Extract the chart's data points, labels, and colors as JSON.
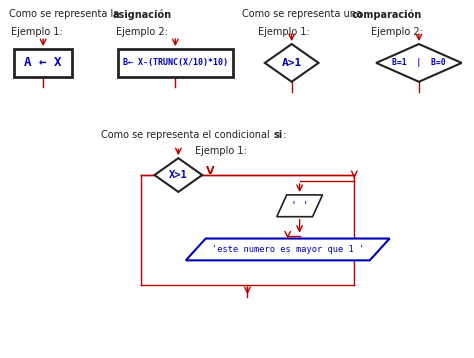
{
  "red": "#bb0000",
  "blue": "#0000bb",
  "black": "#222222",
  "title1_normal": "Como se representa la ",
  "title1_bold": "asignación",
  "title2_normal": "Como se representa una ",
  "title2_bold": "comparación",
  "title3_normal": "Como se representa el condicional ",
  "title3_bold": "si",
  "ej1": "Ejemplo 1:",
  "ej2": "Ejemplo 2:",
  "box1_text": "A ← X",
  "box2_text": "B← X-(TRUNC(X/10)*10)",
  "d1_text": "A>1",
  "d2_text": "B=1  |  B=0",
  "d3_text": "X>1",
  "para_text": "' '",
  "out_text": "'este numero es mayor que 1 '",
  "v_label": "V"
}
